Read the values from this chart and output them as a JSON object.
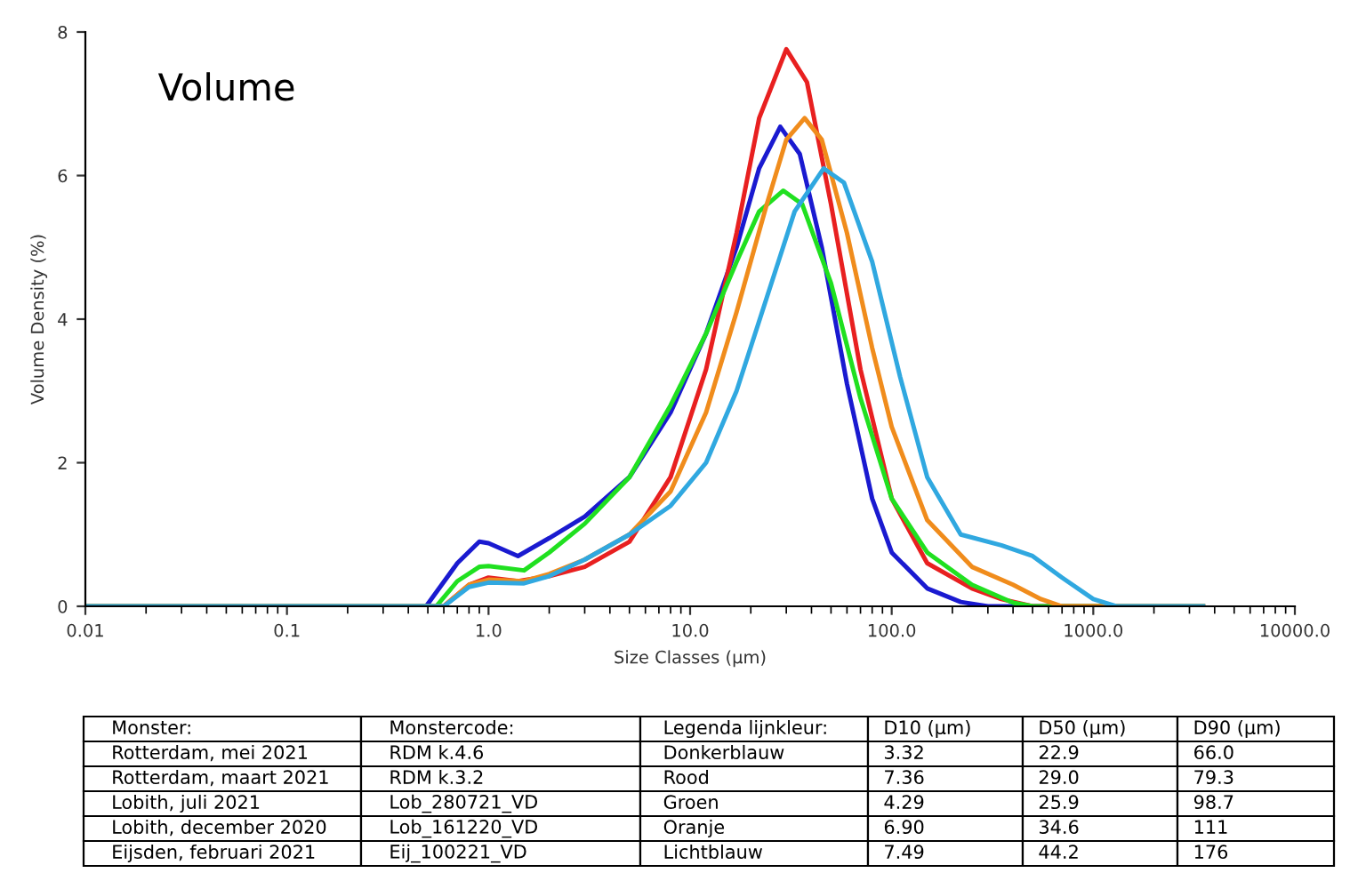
{
  "chart_data": {
    "type": "line",
    "title": "Volume",
    "xlabel": "Size Classes (µm)",
    "ylabel": "Volume Density (%)",
    "log": "x",
    "xlim": [
      0.01,
      10000
    ],
    "ylim": [
      0,
      8
    ],
    "xticks": [
      {
        "value": 0.01,
        "label": "0.01"
      },
      {
        "value": 0.1,
        "label": "0.1"
      },
      {
        "value": 1,
        "label": "1.0"
      },
      {
        "value": 10,
        "label": "10.0"
      },
      {
        "value": 100,
        "label": "100.0"
      },
      {
        "value": 1000,
        "label": "1000.0"
      },
      {
        "value": 10000,
        "label": "10000.0"
      }
    ],
    "yticks": [
      0,
      2,
      4,
      6,
      8
    ],
    "grid": false,
    "legend": false,
    "marker": "none",
    "line_style": "solid",
    "series": [
      {
        "color": "#1a1ad0",
        "x": [
          0.01,
          0.49,
          0.7,
          0.9,
          1.0,
          1.4,
          2,
          3,
          5,
          8,
          12,
          17,
          22,
          28,
          35,
          45,
          60,
          80,
          100,
          150,
          220,
          300,
          3500
        ],
        "values": [
          0,
          0,
          0.6,
          0.9,
          0.88,
          0.7,
          0.95,
          1.25,
          1.8,
          2.7,
          3.8,
          5.0,
          6.1,
          6.68,
          6.3,
          5.0,
          3.1,
          1.5,
          0.75,
          0.25,
          0.06,
          0,
          0
        ]
      },
      {
        "color": "#e82020",
        "x": [
          0.01,
          0.6,
          0.8,
          1.0,
          1.4,
          2,
          3,
          5,
          8,
          12,
          17,
          22,
          30,
          38,
          50,
          70,
          100,
          150,
          250,
          350,
          500,
          3500
        ],
        "values": [
          0,
          0,
          0.3,
          0.4,
          0.35,
          0.42,
          0.55,
          0.9,
          1.8,
          3.3,
          5.2,
          6.8,
          7.76,
          7.3,
          5.6,
          3.3,
          1.5,
          0.6,
          0.25,
          0.1,
          0,
          0
        ]
      },
      {
        "color": "#20e020",
        "x": [
          0.01,
          0.55,
          0.7,
          0.9,
          1.0,
          1.5,
          2,
          3,
          5,
          8,
          12,
          17,
          22,
          29,
          36,
          50,
          70,
          100,
          150,
          250,
          400,
          500,
          3500
        ],
        "values": [
          0,
          0,
          0.35,
          0.55,
          0.56,
          0.5,
          0.75,
          1.15,
          1.8,
          2.8,
          3.8,
          4.8,
          5.5,
          5.79,
          5.6,
          4.5,
          2.9,
          1.5,
          0.75,
          0.3,
          0.05,
          0,
          0
        ]
      },
      {
        "color": "#f08c1c",
        "x": [
          0.01,
          0.6,
          0.8,
          1.0,
          1.5,
          2,
          3,
          5,
          8,
          12,
          17,
          24,
          30,
          37,
          45,
          60,
          80,
          100,
          150,
          250,
          400,
          550,
          700,
          3500
        ],
        "values": [
          0,
          0,
          0.3,
          0.37,
          0.35,
          0.45,
          0.65,
          1.0,
          1.6,
          2.7,
          4.1,
          5.6,
          6.5,
          6.8,
          6.5,
          5.2,
          3.6,
          2.5,
          1.2,
          0.55,
          0.3,
          0.1,
          0,
          0
        ]
      },
      {
        "color": "#30a8e0",
        "x": [
          0.01,
          0.6,
          0.8,
          1.0,
          1.5,
          2,
          3,
          5,
          8,
          12,
          17,
          24,
          33,
          46,
          58,
          80,
          110,
          150,
          220,
          350,
          500,
          700,
          1000,
          1300,
          3500
        ],
        "values": [
          0,
          0,
          0.27,
          0.33,
          0.32,
          0.42,
          0.65,
          1.0,
          1.4,
          2.0,
          3.0,
          4.3,
          5.5,
          6.1,
          5.9,
          4.8,
          3.2,
          1.8,
          1.0,
          0.85,
          0.7,
          0.4,
          0.1,
          0,
          0
        ]
      }
    ],
    "annotations": [
      "Monster:",
      "Monstercode:",
      "Legenda lijnkleur:",
      "D10 (µm)",
      "D50 (µm)",
      "D90 (µm)",
      "Rotterdam, mei 2021",
      "RDM k.4.6",
      "Donkerblauw",
      "3.32",
      "22.9",
      "66.0",
      "Rotterdam, maart 2021",
      "RDM k.3.2",
      "Rood",
      "7.36",
      "29.0",
      "79.3",
      "Lobith, juli 2021",
      "Lob_280721_VD",
      "Groen",
      "4.29",
      "25.9",
      "98.7",
      "Lobith, december 2020",
      "Lob_161220_VD",
      "Oranje",
      "6.90",
      "34.6",
      "111",
      "Eijsden, februari 2021",
      "Eij_100221_VD",
      "Lichtblauw",
      "7.49",
      "44.2",
      "176"
    ]
  }
}
